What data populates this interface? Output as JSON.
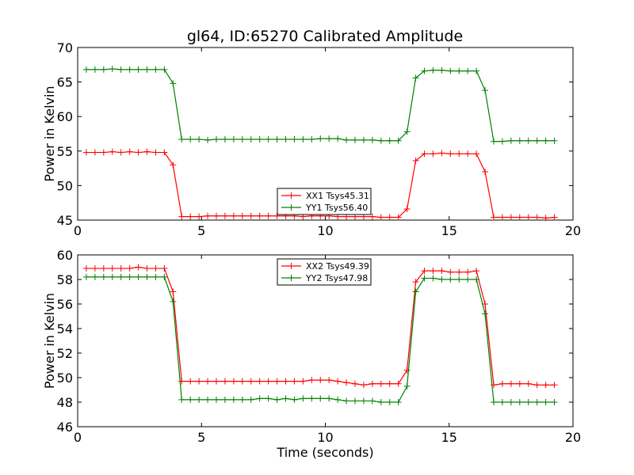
{
  "figure": {
    "title": "gl64, ID:65270 Calibrated Amplitude"
  },
  "chart_data": [
    {
      "type": "line",
      "xlabel": "",
      "ylabel": "Power in Kelvin",
      "xlim": [
        0,
        20
      ],
      "ylim": [
        45,
        70
      ],
      "xticks": [
        "0",
        "5",
        "10",
        "15",
        "20"
      ],
      "yticks": [
        "45",
        "50",
        "55",
        "60",
        "65",
        "70"
      ],
      "legend_position": "lower-center",
      "x": [
        0.35,
        0.7,
        1.05,
        1.4,
        1.75,
        2.1,
        2.45,
        2.8,
        3.15,
        3.5,
        3.85,
        4.2,
        4.55,
        4.9,
        5.25,
        5.6,
        5.95,
        6.3,
        6.65,
        7.0,
        7.35,
        7.7,
        8.05,
        8.4,
        8.75,
        9.1,
        9.45,
        9.8,
        10.15,
        10.5,
        10.85,
        11.2,
        11.55,
        11.9,
        12.25,
        12.6,
        12.95,
        13.3,
        13.65,
        14.0,
        14.35,
        14.7,
        15.05,
        15.4,
        15.75,
        16.1,
        16.45,
        16.8,
        17.15,
        17.5,
        17.85,
        18.2,
        18.55,
        18.9,
        19.25
      ],
      "series": [
        {
          "name": "XX1 Tsys45.31",
          "color": "#ff0000",
          "values": [
            54.8,
            54.8,
            54.8,
            54.9,
            54.8,
            54.9,
            54.8,
            54.9,
            54.8,
            54.8,
            53.0,
            45.5,
            45.5,
            45.5,
            45.6,
            45.6,
            45.6,
            45.6,
            45.6,
            45.6,
            45.6,
            45.6,
            45.6,
            45.6,
            45.6,
            45.5,
            45.6,
            45.6,
            45.6,
            45.5,
            45.5,
            45.5,
            45.5,
            45.5,
            45.4,
            45.4,
            45.4,
            46.6,
            53.6,
            54.6,
            54.6,
            54.7,
            54.6,
            54.6,
            54.6,
            54.6,
            52.0,
            45.4,
            45.4,
            45.4,
            45.4,
            45.4,
            45.4,
            45.3,
            45.4
          ],
          "label_text": "XX1 Tsys45.31"
        },
        {
          "name": "YY1 Tsys56.40",
          "color": "#008000",
          "values": [
            66.8,
            66.8,
            66.8,
            66.9,
            66.8,
            66.8,
            66.8,
            66.8,
            66.8,
            66.8,
            64.8,
            56.7,
            56.7,
            56.7,
            56.6,
            56.7,
            56.7,
            56.7,
            56.7,
            56.7,
            56.7,
            56.7,
            56.7,
            56.7,
            56.7,
            56.7,
            56.7,
            56.8,
            56.8,
            56.8,
            56.6,
            56.6,
            56.6,
            56.6,
            56.5,
            56.5,
            56.5,
            57.8,
            65.6,
            66.6,
            66.7,
            66.7,
            66.6,
            66.6,
            66.6,
            66.6,
            63.8,
            56.4,
            56.4,
            56.5,
            56.5,
            56.5,
            56.5,
            56.5,
            56.5
          ],
          "label_text": "YY1 Tsys56.40"
        }
      ]
    },
    {
      "type": "line",
      "xlabel": "Time (seconds)",
      "ylabel": "Power in Kelvin",
      "xlim": [
        0,
        20
      ],
      "ylim": [
        46,
        60
      ],
      "xticks": [
        "0",
        "5",
        "10",
        "15",
        "20"
      ],
      "yticks": [
        "46",
        "48",
        "50",
        "52",
        "54",
        "56",
        "58",
        "60"
      ],
      "legend_position": "upper-center",
      "x": [
        0.35,
        0.7,
        1.05,
        1.4,
        1.75,
        2.1,
        2.45,
        2.8,
        3.15,
        3.5,
        3.85,
        4.2,
        4.55,
        4.9,
        5.25,
        5.6,
        5.95,
        6.3,
        6.65,
        7.0,
        7.35,
        7.7,
        8.05,
        8.4,
        8.75,
        9.1,
        9.45,
        9.8,
        10.15,
        10.5,
        10.85,
        11.2,
        11.55,
        11.9,
        12.25,
        12.6,
        12.95,
        13.3,
        13.65,
        14.0,
        14.35,
        14.7,
        15.05,
        15.4,
        15.75,
        16.1,
        16.45,
        16.8,
        17.15,
        17.5,
        17.85,
        18.2,
        18.55,
        18.9,
        19.25
      ],
      "series": [
        {
          "name": "XX2 Tsys49.39",
          "color": "#ff0000",
          "values": [
            58.9,
            58.9,
            58.9,
            58.9,
            58.9,
            58.9,
            59.0,
            58.9,
            58.9,
            58.9,
            57.0,
            49.7,
            49.7,
            49.7,
            49.7,
            49.7,
            49.7,
            49.7,
            49.7,
            49.7,
            49.7,
            49.7,
            49.7,
            49.7,
            49.7,
            49.7,
            49.8,
            49.8,
            49.8,
            49.7,
            49.6,
            49.5,
            49.4,
            49.5,
            49.5,
            49.5,
            49.5,
            50.6,
            57.8,
            58.7,
            58.7,
            58.7,
            58.6,
            58.6,
            58.6,
            58.7,
            56.0,
            49.4,
            49.5,
            49.5,
            49.5,
            49.5,
            49.4,
            49.4,
            49.4
          ],
          "label_text": "XX2 Tsys49.39"
        },
        {
          "name": "YY2 Tsys47.98",
          "color": "#008000",
          "values": [
            58.2,
            58.2,
            58.2,
            58.2,
            58.2,
            58.2,
            58.2,
            58.2,
            58.2,
            58.2,
            56.2,
            48.2,
            48.2,
            48.2,
            48.2,
            48.2,
            48.2,
            48.2,
            48.2,
            48.2,
            48.3,
            48.3,
            48.2,
            48.3,
            48.2,
            48.3,
            48.3,
            48.3,
            48.3,
            48.2,
            48.1,
            48.1,
            48.1,
            48.1,
            48.0,
            48.0,
            48.0,
            49.3,
            57.0,
            58.1,
            58.1,
            58.0,
            58.0,
            58.0,
            58.0,
            58.0,
            55.2,
            48.0,
            48.0,
            48.0,
            48.0,
            48.0,
            48.0,
            48.0,
            48.0
          ],
          "label_text": "YY2 Tsys47.98"
        }
      ]
    }
  ]
}
